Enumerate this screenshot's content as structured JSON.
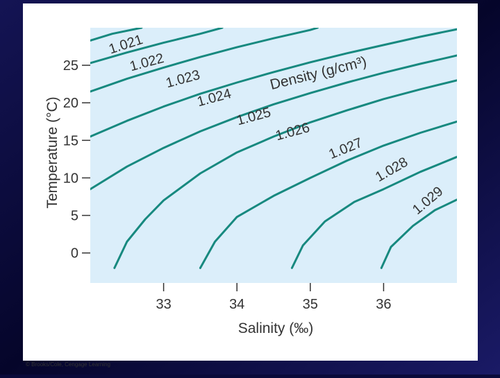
{
  "chart_data": {
    "type": "line",
    "annotation": "Density (g/cm³)",
    "xlabel": "Salinity (‰)",
    "ylabel": "Temperature (°C)",
    "credit": "© Brooks/Cole, Cengage Learning",
    "xlim": [
      32,
      37
    ],
    "xticks": [
      33,
      34,
      35,
      36
    ],
    "ylim": [
      -4,
      30
    ],
    "yticks": [
      0,
      5,
      10,
      15,
      20,
      25
    ],
    "series": [
      {
        "name": "1.021",
        "color": "#17897f",
        "x": [
          32,
          32.3,
          32.7
        ],
        "values": [
          28.3,
          29.2,
          30
        ]
      },
      {
        "name": "1.022",
        "color": "#17897f",
        "x": [
          32,
          32.5,
          33,
          33.5,
          33.8
        ],
        "values": [
          25.3,
          26.7,
          28,
          29.2,
          30
        ]
      },
      {
        "name": "1.023",
        "color": "#17897f",
        "x": [
          32,
          32.5,
          33,
          33.5,
          34,
          34.5,
          35,
          35.1
        ],
        "values": [
          21.5,
          23.2,
          24.7,
          26.1,
          27.4,
          28.6,
          29.7,
          30
        ]
      },
      {
        "name": "1.024",
        "color": "#17897f",
        "x": [
          32,
          32.5,
          33,
          33.5,
          34,
          34.5,
          35,
          35.5,
          36,
          36.5,
          37
        ],
        "values": [
          15.5,
          17.6,
          19.5,
          21.2,
          22.7,
          24.1,
          25.4,
          26.6,
          27.7,
          28.8,
          29.8
        ]
      },
      {
        "name": "1.025",
        "color": "#17897f",
        "x": [
          32,
          32.5,
          33,
          33.5,
          34,
          34.5,
          35,
          35.5,
          36,
          36.5,
          37
        ],
        "values": [
          8.5,
          11.5,
          14,
          16.2,
          18.1,
          19.8,
          21.3,
          22.7,
          24,
          25.2,
          26.3
        ]
      },
      {
        "name": "1.026",
        "color": "#17897f",
        "x": [
          32.33,
          32.5,
          32.75,
          33,
          33.5,
          34,
          34.5,
          35,
          35.5,
          36,
          36.5,
          37
        ],
        "values": [
          -2,
          1.5,
          4.5,
          7,
          10.6,
          13.4,
          15.5,
          17.4,
          19,
          20.5,
          21.8,
          23
        ]
      },
      {
        "name": "1.027",
        "color": "#17897f",
        "x": [
          33.5,
          33.7,
          34,
          34.5,
          35,
          35.5,
          36,
          36.5,
          37
        ],
        "values": [
          -2,
          1.5,
          4.8,
          7.6,
          10,
          12.3,
          14.3,
          16,
          17.5
        ]
      },
      {
        "name": "1.028",
        "color": "#17897f",
        "x": [
          34.75,
          34.9,
          35.2,
          35.6,
          36,
          36.5,
          37
        ],
        "values": [
          -2,
          1,
          4.2,
          6.8,
          8.5,
          10.8,
          12.8
        ]
      },
      {
        "name": "1.029",
        "color": "#17897f",
        "x": [
          35.97,
          36.1,
          36.4,
          36.7,
          37
        ],
        "values": [
          -2,
          0.8,
          3.6,
          5.7,
          7.1
        ]
      }
    ]
  }
}
